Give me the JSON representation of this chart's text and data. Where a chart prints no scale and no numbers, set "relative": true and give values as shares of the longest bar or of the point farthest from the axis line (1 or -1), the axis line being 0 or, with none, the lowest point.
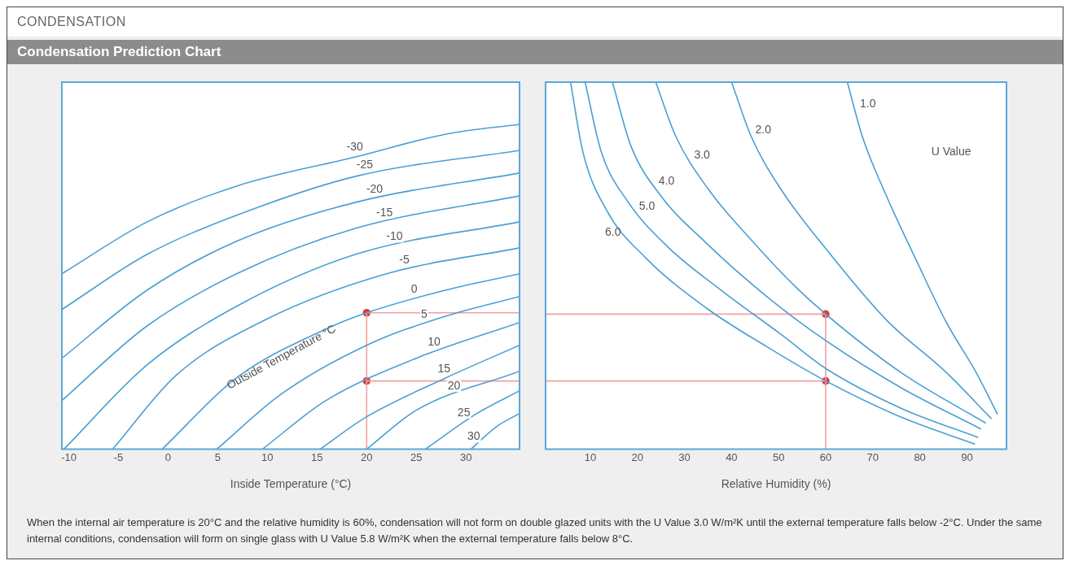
{
  "chart_data": [
    {
      "type": "line",
      "title": "CONDENSATION",
      "subtitle": "Condensation Prediction Chart",
      "xlabel": "Inside Temperature (°C)",
      "legend_title": "Outside Temperature °C",
      "relative": true,
      "grid": false,
      "legend": false,
      "marker": "none",
      "line_style": "solid",
      "xlim": [
        -10.7,
        35.4
      ],
      "xticks": [
        -10,
        -5,
        0,
        5,
        10,
        15,
        20,
        25,
        30
      ],
      "annotations": [
        "When the internal air temperature is 20°C and the relative humidity is 60%, condensation will not form on double glazed units with the U Value 3.0 W/m²K until the external temperature falls below -2°C. Under the same internal conditions, condensation will form on single glass with U Value 5.8 W/m²K when the external temperature falls below 8°C."
      ],
      "series": [
        {
          "name": "-30",
          "color": "#4a9fd4",
          "x": [
            -10.7,
            -2.1,
            6.9,
            18.9,
            28.0,
            35.4
          ],
          "values": [
            0.54,
            0.7,
            0.81,
            0.9,
            0.97,
            1
          ]
        },
        {
          "name": "-25",
          "color": "#4a9fd4",
          "x": [
            -10.7,
            -2.1,
            6.9,
            18.9,
            35.4
          ],
          "values": [
            0.43,
            0.6,
            0.72,
            0.84,
            0.92
          ]
        },
        {
          "name": "-20",
          "color": "#4a9fd4",
          "x": [
            -10.7,
            -2.1,
            6.9,
            18.9,
            35.4
          ],
          "values": [
            0.28,
            0.49,
            0.64,
            0.76,
            0.85
          ]
        },
        {
          "name": "-15",
          "color": "#4a9fd4",
          "x": [
            -10.7,
            -2.1,
            6.9,
            18.9,
            35.4
          ],
          "values": [
            0.15,
            0.38,
            0.54,
            0.68,
            0.78
          ]
        },
        {
          "name": "-10",
          "color": "#4a9fd4",
          "x": [
            -10.5,
            -2.1,
            6.9,
            18.9,
            35.4
          ],
          "values": [
            0,
            0.26,
            0.44,
            0.6,
            0.7
          ]
        },
        {
          "name": "-5",
          "color": "#4a9fd4",
          "x": [
            -5.6,
            0.9,
            9.9,
            22.0,
            35.4
          ],
          "values": [
            0,
            0.23,
            0.4,
            0.54,
            0.62
          ]
        },
        {
          "name": "0",
          "color": "#4a9fd4",
          "x": [
            -0.6,
            6.9,
            15.9,
            20,
            28.0,
            35.4
          ],
          "values": [
            0,
            0.22,
            0.37,
            0.42,
            0.49,
            0.54
          ]
        },
        {
          "name": "5",
          "color": "#4a9fd4",
          "x": [
            4.9,
            11.4,
            20,
            28.0,
            35.4
          ],
          "values": [
            0,
            0.17,
            0.32,
            0.41,
            0.47
          ]
        },
        {
          "name": "10",
          "color": "#4a9fd4",
          "x": [
            9.5,
            15.9,
            25.0,
            35.4
          ],
          "values": [
            0,
            0.15,
            0.28,
            0.39
          ]
        },
        {
          "name": "15",
          "color": "#4a9fd4",
          "x": [
            15.3,
            20,
            28.0,
            35.4
          ],
          "values": [
            0,
            0.1,
            0.22,
            0.32
          ]
        },
        {
          "name": "20",
          "color": "#4a9fd4",
          "x": [
            20,
            25.0,
            35.4
          ],
          "values": [
            0,
            0.12,
            0.24
          ]
        },
        {
          "name": "25",
          "color": "#4a9fd4",
          "x": [
            25.9,
            31.1,
            35.4
          ],
          "values": [
            0,
            0.11,
            0.18
          ]
        },
        {
          "name": "30",
          "color": "#4a9fd4",
          "x": [
            30.5,
            33.1,
            35.4
          ],
          "values": [
            0,
            0.07,
            0.11
          ]
        },
        {
          "color": "#f4a0a0",
          "x": [
            20,
            20,
            35.4
          ],
          "values": [
            0,
            0.42,
            0.42
          ]
        },
        {
          "color": "#f4a0a0",
          "x": [
            20,
            35.4
          ],
          "values": [
            0.21,
            0.21
          ]
        },
        {
          "type": "scatter",
          "marker": "circle",
          "color": "#e03a3a",
          "x": [
            20,
            20
          ],
          "values": [
            0.42,
            0.21
          ]
        }
      ]
    },
    {
      "type": "line",
      "xlabel": "Relative Humidity (%)",
      "legend_title": "U Value",
      "relative": true,
      "grid": false,
      "legend": false,
      "marker": "none",
      "line_style": "solid",
      "xlim": [
        0.5,
        98.4
      ],
      "xticks": [
        10,
        20,
        30,
        40,
        50,
        60,
        70,
        80,
        90
      ],
      "series": [
        {
          "name": "1.0",
          "color": "#4a9fd4",
          "x": [
            64.6,
            67.8,
            72.9,
            79.3,
            85.7,
            92.0,
            96.5
          ],
          "values": [
            1.0,
            0.851,
            0.69,
            0.513,
            0.344,
            0.208,
            0.095
          ]
        },
        {
          "name": "2.0",
          "color": "#4a9fd4",
          "x": [
            40.0,
            44.2,
            50.6,
            60.1,
            72.9,
            85.7,
            95.2
          ],
          "values": [
            1.0,
            0.851,
            0.706,
            0.545,
            0.352,
            0.208,
            0.083
          ]
        },
        {
          "name": "3.0",
          "color": "#4a9fd4",
          "x": [
            23.9,
            28.2,
            35.2,
            44.2,
            53.7,
            60,
            76.1,
            94.0
          ],
          "values": [
            1.0,
            0.851,
            0.706,
            0.57,
            0.441,
            0.368,
            0.208,
            0.071
          ]
        },
        {
          "name": "4.0",
          "color": "#4a9fd4",
          "x": [
            14.7,
            18.6,
            25.0,
            34.6,
            47.4,
            60,
            76.1,
            93.0
          ],
          "values": [
            1.0,
            0.827,
            0.69,
            0.562,
            0.417,
            0.296,
            0.167,
            0.055
          ]
        },
        {
          "name": "5.0",
          "color": "#4a9fd4",
          "x": [
            8.9,
            12.3,
            18.0,
            26.3,
            37.8,
            50.6,
            60,
            76.1,
            92.4
          ],
          "values": [
            1.0,
            0.811,
            0.674,
            0.553,
            0.433,
            0.312,
            0.22,
            0.111,
            0.032
          ]
        },
        {
          "name": "6.0",
          "color": "#4a9fd4",
          "x": [
            5.8,
            8.4,
            13.5,
            21.8,
            34.6,
            47.4,
            60,
            76.1,
            91.7
          ],
          "values": [
            1.0,
            0.811,
            0.65,
            0.521,
            0.385,
            0.28,
            0.186,
            0.087,
            0.014
          ]
        },
        {
          "color": "#f4a0a0",
          "x": [
            0.5,
            60,
            60
          ],
          "values": [
            0.368,
            0.368,
            0
          ]
        },
        {
          "color": "#f4a0a0",
          "x": [
            0.5,
            60
          ],
          "values": [
            0.186,
            0.186
          ]
        },
        {
          "type": "scatter",
          "marker": "circle",
          "color": "#e03a3a",
          "x": [
            60,
            60
          ],
          "values": [
            0.368,
            0.186
          ]
        }
      ]
    }
  ]
}
